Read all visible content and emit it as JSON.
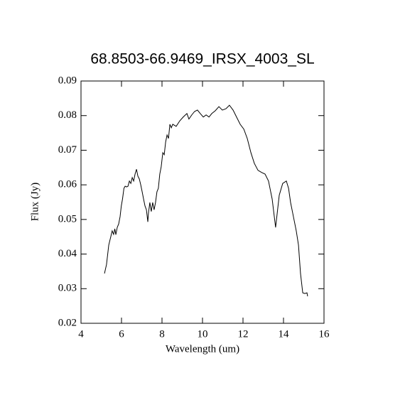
{
  "chart_data": {
    "type": "line",
    "title": "68.8503-66.9469_IRSX_4003_SL",
    "x_label": "Wavelength (um)",
    "y_label": "Flux (Jy)",
    "color": "#000000",
    "xlim": [
      4,
      16
    ],
    "xticks": [
      4,
      6,
      8,
      10,
      12,
      14,
      16
    ],
    "ylim": [
      0.02,
      0.09
    ],
    "yticks": [
      0.02,
      0.03,
      0.04,
      0.05,
      0.06,
      0.07,
      0.08,
      0.09
    ],
    "x": [
      5.16,
      5.26,
      5.37,
      5.47,
      5.54,
      5.61,
      5.67,
      5.72,
      5.79,
      5.86,
      5.93,
      5.99,
      6.05,
      6.12,
      6.18,
      6.25,
      6.32,
      6.39,
      6.46,
      6.53,
      6.6,
      6.67,
      6.74,
      6.81,
      6.88,
      6.95,
      7.02,
      7.09,
      7.16,
      7.23,
      7.3,
      7.33,
      7.4,
      7.47,
      7.54,
      7.61,
      7.68,
      7.75,
      7.82,
      7.89,
      7.96,
      8.04,
      8.11,
      8.18,
      8.25,
      8.32,
      8.39,
      8.46,
      8.53,
      8.7,
      8.88,
      9.05,
      9.23,
      9.33,
      9.47,
      9.61,
      9.75,
      9.89,
      10.04,
      10.18,
      10.32,
      10.46,
      10.63,
      10.81,
      10.98,
      11.16,
      11.33,
      11.51,
      11.68,
      11.86,
      12.04,
      12.21,
      12.39,
      12.56,
      12.74,
      12.91,
      13.09,
      13.26,
      13.44,
      13.61,
      13.79,
      13.96,
      14.14,
      14.25,
      14.35,
      14.49,
      14.63,
      14.74,
      14.84,
      14.95,
      15.05,
      15.16,
      15.19
    ],
    "values": [
      0.0344,
      0.037,
      0.0426,
      0.045,
      0.0467,
      0.0457,
      0.0473,
      0.0456,
      0.0477,
      0.0487,
      0.0508,
      0.0539,
      0.0559,
      0.059,
      0.0596,
      0.0594,
      0.0596,
      0.0611,
      0.0604,
      0.0621,
      0.0611,
      0.0631,
      0.0645,
      0.0625,
      0.0617,
      0.06,
      0.058,
      0.0559,
      0.0539,
      0.0528,
      0.0493,
      0.0518,
      0.0549,
      0.0523,
      0.0549,
      0.0528,
      0.0549,
      0.058,
      0.059,
      0.0631,
      0.0652,
      0.0693,
      0.0687,
      0.0724,
      0.0744,
      0.0734,
      0.0775,
      0.0765,
      0.0775,
      0.0769,
      0.0785,
      0.0796,
      0.0806,
      0.079,
      0.0802,
      0.0812,
      0.0816,
      0.0806,
      0.0796,
      0.0802,
      0.0796,
      0.0806,
      0.0814,
      0.0826,
      0.0816,
      0.082,
      0.083,
      0.0816,
      0.0796,
      0.0775,
      0.0761,
      0.0734,
      0.0693,
      0.0662,
      0.0642,
      0.0636,
      0.0631,
      0.0611,
      0.0559,
      0.0477,
      0.057,
      0.0604,
      0.0611,
      0.059,
      0.0549,
      0.0508,
      0.0467,
      0.0426,
      0.0344,
      0.0288,
      0.0286,
      0.0288,
      0.0278
    ]
  }
}
